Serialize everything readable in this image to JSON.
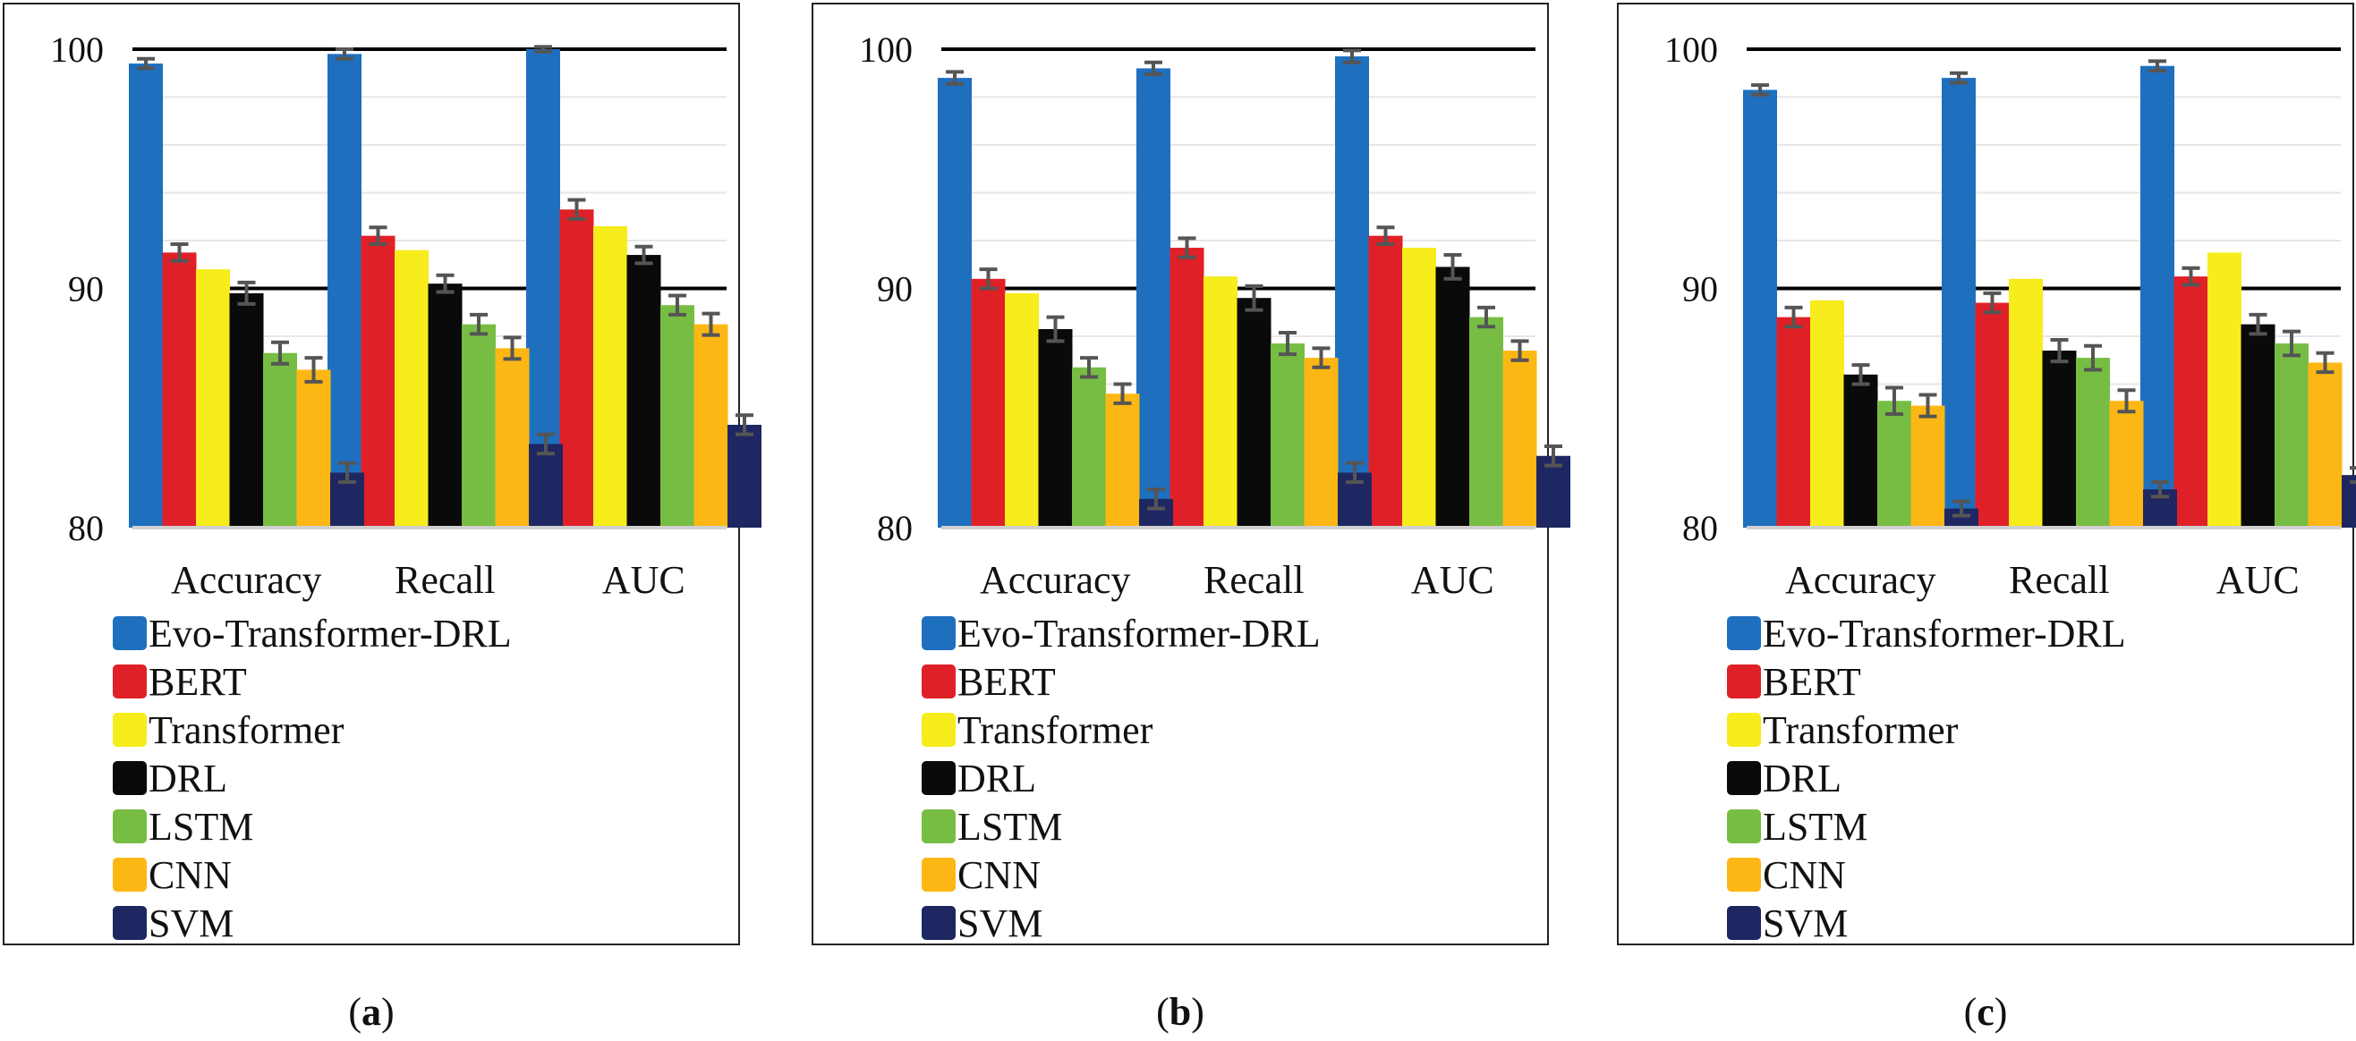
{
  "figure": {
    "colors": {
      "Evo-Transformer-DRL": "#1f6fbf",
      "BERT": "#e02027",
      "Transformer": "#f7ec1c",
      "DRL": "#0a0a0a",
      "LSTM": "#77bd43",
      "CNN": "#fdb714",
      "SVM": "#1e2761"
    },
    "error_bar_color": "#555555"
  },
  "chart_data": [
    {
      "type": "bar",
      "panel_label": "a",
      "categories": [
        "Accuracy",
        "Recall",
        "AUC"
      ],
      "ylim": [
        80,
        100
      ],
      "yticks": [
        "80",
        "90",
        "100"
      ],
      "grid": true,
      "legend_position": "below",
      "series": [
        {
          "name": "Evo-Transformer-DRL",
          "values": [
            99.4,
            99.8,
            100.0
          ],
          "errors": [
            0.2,
            0.2,
            0.1
          ]
        },
        {
          "name": "BERT",
          "values": [
            91.5,
            92.2,
            93.3
          ],
          "errors": [
            0.35,
            0.35,
            0.4
          ]
        },
        {
          "name": "Transformer",
          "values": [
            90.8,
            91.6,
            92.6
          ],
          "errors": [
            0,
            0,
            0
          ]
        },
        {
          "name": "DRL",
          "values": [
            89.8,
            90.2,
            91.4
          ],
          "errors": [
            0.45,
            0.35,
            0.35
          ]
        },
        {
          "name": "LSTM",
          "values": [
            87.3,
            88.5,
            89.3
          ],
          "errors": [
            0.45,
            0.4,
            0.4
          ]
        },
        {
          "name": "CNN",
          "values": [
            86.6,
            87.5,
            88.5
          ],
          "errors": [
            0.5,
            0.45,
            0.45
          ]
        },
        {
          "name": "SVM",
          "values": [
            82.3,
            83.5,
            84.3
          ],
          "errors": [
            0.4,
            0.4,
            0.4
          ]
        }
      ]
    },
    {
      "type": "bar",
      "panel_label": "b",
      "categories": [
        "Accuracy",
        "Recall",
        "AUC"
      ],
      "ylim": [
        80,
        100
      ],
      "yticks": [
        "80",
        "90",
        "100"
      ],
      "grid": true,
      "legend_position": "below",
      "series": [
        {
          "name": "Evo-Transformer-DRL",
          "values": [
            98.8,
            99.2,
            99.7
          ],
          "errors": [
            0.25,
            0.25,
            0.25
          ]
        },
        {
          "name": "BERT",
          "values": [
            90.4,
            91.7,
            92.2
          ],
          "errors": [
            0.4,
            0.4,
            0.35
          ]
        },
        {
          "name": "Transformer",
          "values": [
            89.8,
            90.5,
            91.7
          ],
          "errors": [
            0,
            0,
            0
          ]
        },
        {
          "name": "DRL",
          "values": [
            88.3,
            89.6,
            90.9
          ],
          "errors": [
            0.5,
            0.5,
            0.5
          ]
        },
        {
          "name": "LSTM",
          "values": [
            86.7,
            87.7,
            88.8
          ],
          "errors": [
            0.4,
            0.45,
            0.4
          ]
        },
        {
          "name": "CNN",
          "values": [
            85.6,
            87.1,
            87.4
          ],
          "errors": [
            0.4,
            0.4,
            0.4
          ]
        },
        {
          "name": "SVM",
          "values": [
            81.2,
            82.3,
            83.0
          ],
          "errors": [
            0.4,
            0.4,
            0.4
          ]
        }
      ]
    },
    {
      "type": "bar",
      "panel_label": "c",
      "categories": [
        "Accuracy",
        "Recall",
        "AUC"
      ],
      "ylim": [
        80,
        100
      ],
      "yticks": [
        "80",
        "90",
        "100"
      ],
      "grid": true,
      "legend_position": "below",
      "series": [
        {
          "name": "Evo-Transformer-DRL",
          "values": [
            98.3,
            98.8,
            99.3
          ],
          "errors": [
            0.2,
            0.2,
            0.2
          ]
        },
        {
          "name": "BERT",
          "values": [
            88.8,
            89.4,
            90.5
          ],
          "errors": [
            0.4,
            0.4,
            0.35
          ]
        },
        {
          "name": "Transformer",
          "values": [
            89.5,
            90.4,
            91.5
          ],
          "errors": [
            0,
            0,
            0
          ]
        },
        {
          "name": "DRL",
          "values": [
            86.4,
            87.4,
            88.5
          ],
          "errors": [
            0.4,
            0.45,
            0.4
          ]
        },
        {
          "name": "LSTM",
          "values": [
            85.3,
            87.1,
            87.7
          ],
          "errors": [
            0.55,
            0.5,
            0.5
          ]
        },
        {
          "name": "CNN",
          "values": [
            85.1,
            85.3,
            86.9
          ],
          "errors": [
            0.45,
            0.45,
            0.4
          ]
        },
        {
          "name": "SVM",
          "values": [
            80.8,
            81.6,
            82.2
          ],
          "errors": [
            0.3,
            0.3,
            0.3
          ]
        }
      ]
    }
  ]
}
